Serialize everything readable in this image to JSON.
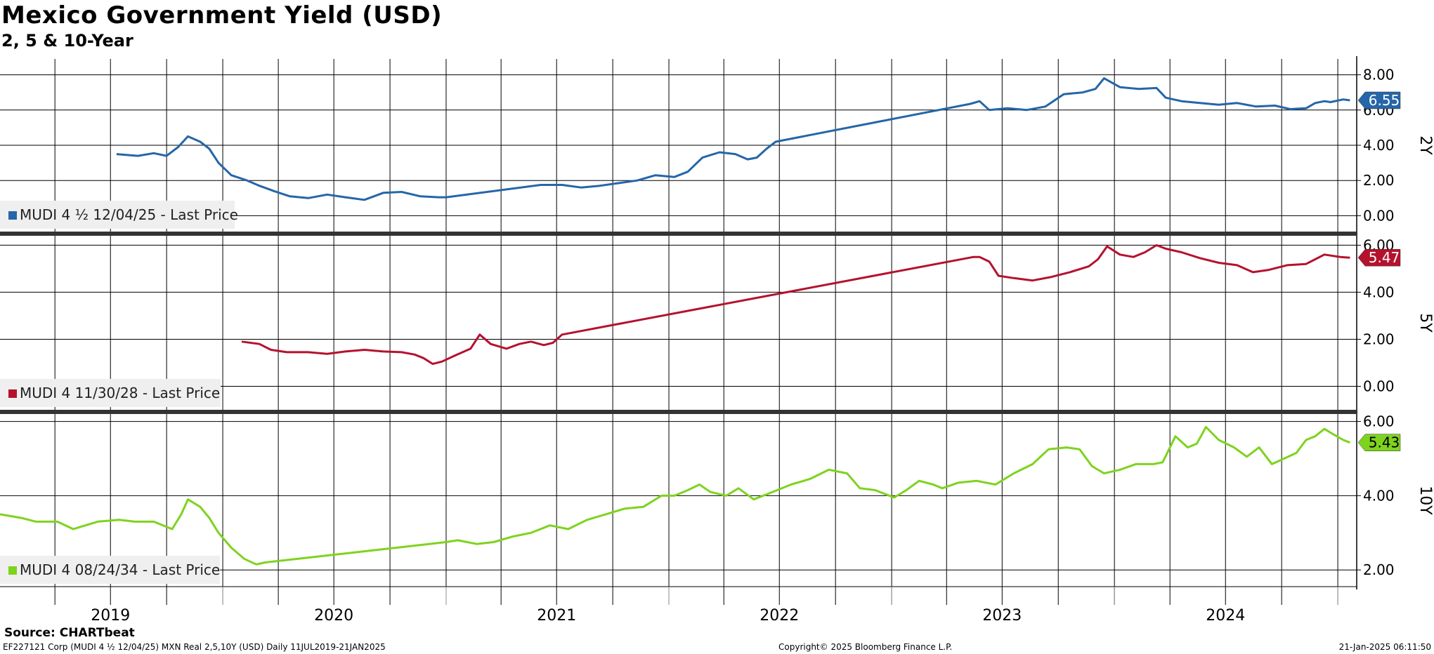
{
  "title": "Mexico Government Yield (USD)",
  "subtitle": "2, 5 & 10-Year",
  "source": "Source: CHARTbeat",
  "footer": {
    "left": "EF227121 Corp (MUDI 4 ½ 12/04/25) MXN Real 2,5,10Y (USD)  Daily 11JUL2019-21JAN2025",
    "center": "Copyright© 2025 Bloomberg Finance L.P.",
    "right": "21-Jan-2025 06:11:50"
  },
  "colors": {
    "2Y": "#2566a8",
    "5Y": "#b5122e",
    "10Y": "#7ed31f"
  },
  "chart_data": {
    "type": "line",
    "x_axis": {
      "type": "date",
      "range": [
        "2019-01-01",
        "2025-02-01"
      ],
      "year_labels": [
        "2019",
        "2020",
        "2021",
        "2022",
        "2023",
        "2024"
      ]
    },
    "grid": true,
    "legend_placement": "bottom-left",
    "panels": [
      {
        "axis_label": "2Y",
        "ylim": [
          -0.9,
          8.9
        ],
        "yticks": [
          "8.00",
          "6.00",
          "4.00",
          "2.00",
          "0.00"
        ],
        "series": [
          {
            "name": "MUDI 4 ½ 12/04/25 - Last Price",
            "last_value": "6.55",
            "points": [
              [
                "2019-07-11",
                3.5
              ],
              [
                "2019-08-15",
                3.4
              ],
              [
                "2019-09-10",
                3.55
              ],
              [
                "2019-10-01",
                3.4
              ],
              [
                "2019-10-20",
                3.9
              ],
              [
                "2019-11-05",
                4.5
              ],
              [
                "2019-11-25",
                4.2
              ],
              [
                "2019-12-10",
                3.8
              ],
              [
                "2019-12-25",
                3.0
              ],
              [
                "2020-01-15",
                2.3
              ],
              [
                "2020-02-10",
                2.0
              ],
              [
                "2020-03-01",
                1.7
              ],
              [
                "2020-03-25",
                1.4
              ],
              [
                "2020-04-20",
                1.1
              ],
              [
                "2020-05-20",
                1.0
              ],
              [
                "2020-06-20",
                1.2
              ],
              [
                "2020-07-20",
                1.05
              ],
              [
                "2020-08-20",
                0.9
              ],
              [
                "2020-09-20",
                1.3
              ],
              [
                "2020-10-20",
                1.35
              ],
              [
                "2020-11-20",
                1.1
              ],
              [
                "2020-12-20",
                1.05
              ],
              [
                "2021-01-01",
                1.05
              ],
              [
                "2021-06-05",
                1.75
              ],
              [
                "2021-07-10",
                1.75
              ],
              [
                "2021-08-10",
                1.6
              ],
              [
                "2021-09-10",
                1.7
              ],
              [
                "2021-10-10",
                1.85
              ],
              [
                "2021-11-10",
                2.0
              ],
              [
                "2021-12-10",
                2.3
              ],
              [
                "2022-01-10",
                2.2
              ],
              [
                "2022-02-01",
                2.5
              ],
              [
                "2022-02-25",
                3.3
              ],
              [
                "2022-03-25",
                3.6
              ],
              [
                "2022-04-20",
                3.5
              ],
              [
                "2022-05-10",
                3.2
              ],
              [
                "2022-05-25",
                3.3
              ],
              [
                "2022-06-10",
                3.8
              ],
              [
                "2022-06-25",
                4.2
              ],
              [
                "2023-05-10",
                6.35
              ],
              [
                "2023-05-25",
                6.5
              ],
              [
                "2023-06-10",
                6.0
              ],
              [
                "2023-07-10",
                6.1
              ],
              [
                "2023-08-10",
                6.0
              ],
              [
                "2023-09-10",
                6.2
              ],
              [
                "2023-10-10",
                6.9
              ],
              [
                "2023-11-10",
                7.0
              ],
              [
                "2023-12-01",
                7.2
              ],
              [
                "2023-12-15",
                7.8
              ],
              [
                "2024-01-10",
                7.3
              ],
              [
                "2024-02-10",
                7.2
              ],
              [
                "2024-03-10",
                7.25
              ],
              [
                "2024-03-25",
                6.7
              ],
              [
                "2024-04-20",
                6.5
              ],
              [
                "2024-05-20",
                6.4
              ],
              [
                "2024-06-20",
                6.3
              ],
              [
                "2024-07-20",
                6.4
              ],
              [
                "2024-08-20",
                6.2
              ],
              [
                "2024-09-20",
                6.25
              ],
              [
                "2024-10-15",
                6.05
              ],
              [
                "2024-11-10",
                6.1
              ],
              [
                "2024-11-25",
                6.4
              ],
              [
                "2024-12-10",
                6.5
              ],
              [
                "2024-12-20",
                6.45
              ],
              [
                "2025-01-10",
                6.6
              ],
              [
                "2025-01-21",
                6.55
              ]
            ]
          }
        ]
      },
      {
        "axis_label": "5Y",
        "ylim": [
          -1.0,
          6.4
        ],
        "yticks": [
          "6.00",
          "4.00",
          "2.00",
          "0.00"
        ],
        "series": [
          {
            "name": "MUDI 4 11/30/28 - Last Price",
            "last_value": "5.47",
            "points": [
              [
                "2020-02-01",
                1.9
              ],
              [
                "2020-03-01",
                1.8
              ],
              [
                "2020-03-20",
                1.55
              ],
              [
                "2020-04-15",
                1.45
              ],
              [
                "2020-05-20",
                1.45
              ],
              [
                "2020-06-20",
                1.38
              ],
              [
                "2020-07-20",
                1.48
              ],
              [
                "2020-08-20",
                1.55
              ],
              [
                "2020-09-20",
                1.48
              ],
              [
                "2020-10-20",
                1.45
              ],
              [
                "2020-11-10",
                1.35
              ],
              [
                "2020-11-25",
                1.2
              ],
              [
                "2020-12-10",
                0.95
              ],
              [
                "2020-12-25",
                1.05
              ],
              [
                "2021-01-15",
                1.3
              ],
              [
                "2021-02-10",
                1.6
              ],
              [
                "2021-02-25",
                2.2
              ],
              [
                "2021-03-15",
                1.8
              ],
              [
                "2021-04-10",
                1.6
              ],
              [
                "2021-05-01",
                1.8
              ],
              [
                "2021-05-20",
                1.9
              ],
              [
                "2021-06-10",
                1.75
              ],
              [
                "2021-06-25",
                1.85
              ],
              [
                "2021-07-10",
                2.2
              ],
              [
                "2023-05-15",
                5.5
              ],
              [
                "2023-05-25",
                5.5
              ],
              [
                "2023-06-10",
                5.3
              ],
              [
                "2023-06-25",
                4.7
              ],
              [
                "2023-07-20",
                4.6
              ],
              [
                "2023-08-20",
                4.5
              ],
              [
                "2023-09-20",
                4.65
              ],
              [
                "2023-10-20",
                4.85
              ],
              [
                "2023-11-20",
                5.1
              ],
              [
                "2023-12-05",
                5.4
              ],
              [
                "2023-12-20",
                5.95
              ],
              [
                "2024-01-10",
                5.6
              ],
              [
                "2024-02-01",
                5.5
              ],
              [
                "2024-02-20",
                5.7
              ],
              [
                "2024-03-10",
                6.0
              ],
              [
                "2024-03-25",
                5.85
              ],
              [
                "2024-04-20",
                5.7
              ],
              [
                "2024-05-20",
                5.45
              ],
              [
                "2024-06-20",
                5.25
              ],
              [
                "2024-07-20",
                5.15
              ],
              [
                "2024-08-15",
                4.85
              ],
              [
                "2024-09-10",
                4.95
              ],
              [
                "2024-10-10",
                5.15
              ],
              [
                "2024-11-10",
                5.2
              ],
              [
                "2024-11-25",
                5.4
              ],
              [
                "2024-12-10",
                5.6
              ],
              [
                "2025-01-05",
                5.5
              ],
              [
                "2025-01-21",
                5.47
              ]
            ]
          }
        ]
      },
      {
        "axis_label": "10Y",
        "ylim": [
          1.55,
          6.2
        ],
        "yticks": [
          "6.00",
          "4.00",
          "2.00"
        ],
        "series": [
          {
            "name": "MUDI 4 08/24/34 - Last Price",
            "last_value": "5.43",
            "points": [
              [
                "2019-01-01",
                3.5
              ],
              [
                "2019-02-05",
                3.4
              ],
              [
                "2019-03-01",
                3.3
              ],
              [
                "2019-04-05",
                3.3
              ],
              [
                "2019-05-01",
                3.1
              ],
              [
                "2019-06-10",
                3.3
              ],
              [
                "2019-07-15",
                3.35
              ],
              [
                "2019-08-10",
                3.3
              ],
              [
                "2019-09-10",
                3.3
              ],
              [
                "2019-10-10",
                3.1
              ],
              [
                "2019-10-25",
                3.5
              ],
              [
                "2019-11-05",
                3.9
              ],
              [
                "2019-11-25",
                3.7
              ],
              [
                "2019-12-10",
                3.4
              ],
              [
                "2019-12-25",
                3.0
              ],
              [
                "2020-01-15",
                2.6
              ],
              [
                "2020-02-05",
                2.3
              ],
              [
                "2020-02-25",
                2.15
              ],
              [
                "2020-03-10",
                2.2
              ],
              [
                "2021-01-01",
                2.75
              ],
              [
                "2021-01-20",
                2.8
              ],
              [
                "2021-02-20",
                2.7
              ],
              [
                "2021-03-20",
                2.75
              ],
              [
                "2021-04-20",
                2.9
              ],
              [
                "2021-05-20",
                3.0
              ],
              [
                "2021-06-20",
                3.2
              ],
              [
                "2021-07-20",
                3.1
              ],
              [
                "2021-08-20",
                3.35
              ],
              [
                "2021-09-20",
                3.5
              ],
              [
                "2021-10-20",
                3.65
              ],
              [
                "2021-11-20",
                3.7
              ],
              [
                "2021-12-20",
                4.0
              ],
              [
                "2022-01-10",
                4.0
              ],
              [
                "2022-02-01",
                4.15
              ],
              [
                "2022-02-20",
                4.3
              ],
              [
                "2022-03-10",
                4.1
              ],
              [
                "2022-04-05",
                4.0
              ],
              [
                "2022-04-25",
                4.2
              ],
              [
                "2022-05-20",
                3.9
              ],
              [
                "2022-06-20",
                4.1
              ],
              [
                "2022-07-20",
                4.3
              ],
              [
                "2022-08-20",
                4.45
              ],
              [
                "2022-09-20",
                4.7
              ],
              [
                "2022-10-20",
                4.6
              ],
              [
                "2022-11-10",
                4.2
              ],
              [
                "2022-12-05",
                4.15
              ],
              [
                "2023-01-05",
                3.95
              ],
              [
                "2023-01-25",
                4.15
              ],
              [
                "2023-02-15",
                4.4
              ],
              [
                "2023-03-10",
                4.3
              ],
              [
                "2023-03-25",
                4.2
              ],
              [
                "2023-04-20",
                4.35
              ],
              [
                "2023-05-20",
                4.4
              ],
              [
                "2023-06-20",
                4.3
              ],
              [
                "2023-07-20",
                4.6
              ],
              [
                "2023-08-20",
                4.85
              ],
              [
                "2023-09-15",
                5.25
              ],
              [
                "2023-10-15",
                5.3
              ],
              [
                "2023-11-05",
                5.25
              ],
              [
                "2023-11-25",
                4.8
              ],
              [
                "2023-12-15",
                4.6
              ],
              [
                "2024-01-10",
                4.7
              ],
              [
                "2024-02-05",
                4.85
              ],
              [
                "2024-03-05",
                4.85
              ],
              [
                "2024-03-20",
                4.9
              ],
              [
                "2024-04-10",
                5.6
              ],
              [
                "2024-04-30",
                5.3
              ],
              [
                "2024-05-15",
                5.4
              ],
              [
                "2024-05-30",
                5.85
              ],
              [
                "2024-06-20",
                5.5
              ],
              [
                "2024-07-15",
                5.3
              ],
              [
                "2024-08-05",
                5.05
              ],
              [
                "2024-08-25",
                5.3
              ],
              [
                "2024-09-15",
                4.85
              ],
              [
                "2024-10-05",
                5.0
              ],
              [
                "2024-10-25",
                5.15
              ],
              [
                "2024-11-10",
                5.5
              ],
              [
                "2024-11-25",
                5.6
              ],
              [
                "2024-12-10",
                5.8
              ],
              [
                "2024-12-25",
                5.65
              ],
              [
                "2025-01-10",
                5.5
              ],
              [
                "2025-01-21",
                5.43
              ]
            ]
          }
        ]
      }
    ]
  }
}
